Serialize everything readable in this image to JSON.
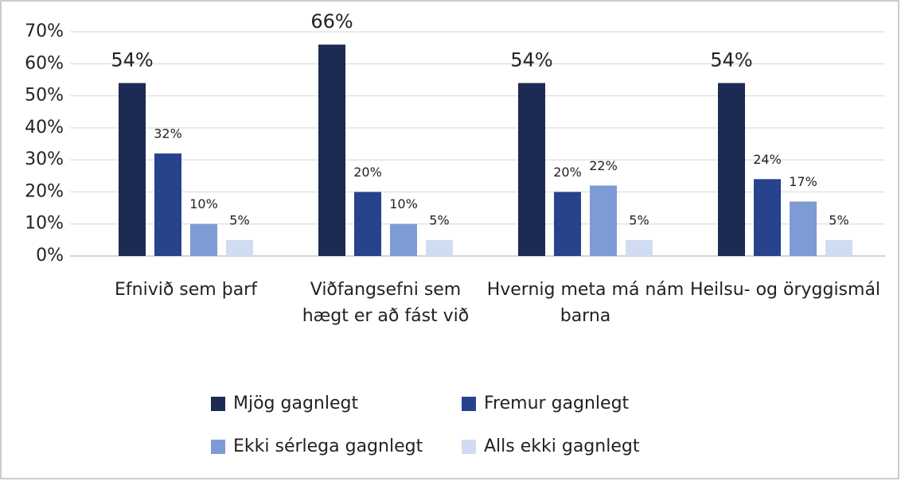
{
  "chart_data": {
    "type": "bar",
    "categories": [
      "Efnivið sem þarf",
      "Viðfangsefni sem hægt er að fást við",
      "Hvernig meta má nám barna",
      "Heilsu- og öryggismál"
    ],
    "series": [
      {
        "name": "Mjög gagnlegt",
        "color": "#1c2a54",
        "values": [
          54,
          66,
          54,
          54
        ],
        "value_labels": [
          "54%",
          "66%",
          "54%",
          "54%"
        ]
      },
      {
        "name": "Fremur gagnlegt",
        "color": "#26438c",
        "values": [
          32,
          20,
          20,
          24
        ],
        "value_labels": [
          "32%",
          "20%",
          "20%",
          "24%"
        ]
      },
      {
        "name": "Ekki sérlega gagnlegt",
        "color": "#7f9bd6",
        "values": [
          10,
          10,
          22,
          17
        ],
        "value_labels": [
          "10%",
          "10%",
          "22%",
          "17%"
        ]
      },
      {
        "name": "Alls ekki gagnlegt",
        "color": "#d0dcf2",
        "values": [
          5,
          5,
          5,
          5
        ],
        "value_labels": [
          "5%",
          "5%",
          "5%",
          "5%"
        ]
      }
    ],
    "ylim": [
      0,
      70
    ],
    "yticks": [
      {
        "value": 0,
        "label": "0%"
      },
      {
        "value": 10,
        "label": "10%"
      },
      {
        "value": 20,
        "label": "20%"
      },
      {
        "value": 30,
        "label": "30%"
      },
      {
        "value": 40,
        "label": "40%"
      },
      {
        "value": 50,
        "label": "50%"
      },
      {
        "value": 60,
        "label": "60%"
      },
      {
        "value": 70,
        "label": "70%"
      }
    ],
    "grid": true,
    "legend": "bottom"
  }
}
